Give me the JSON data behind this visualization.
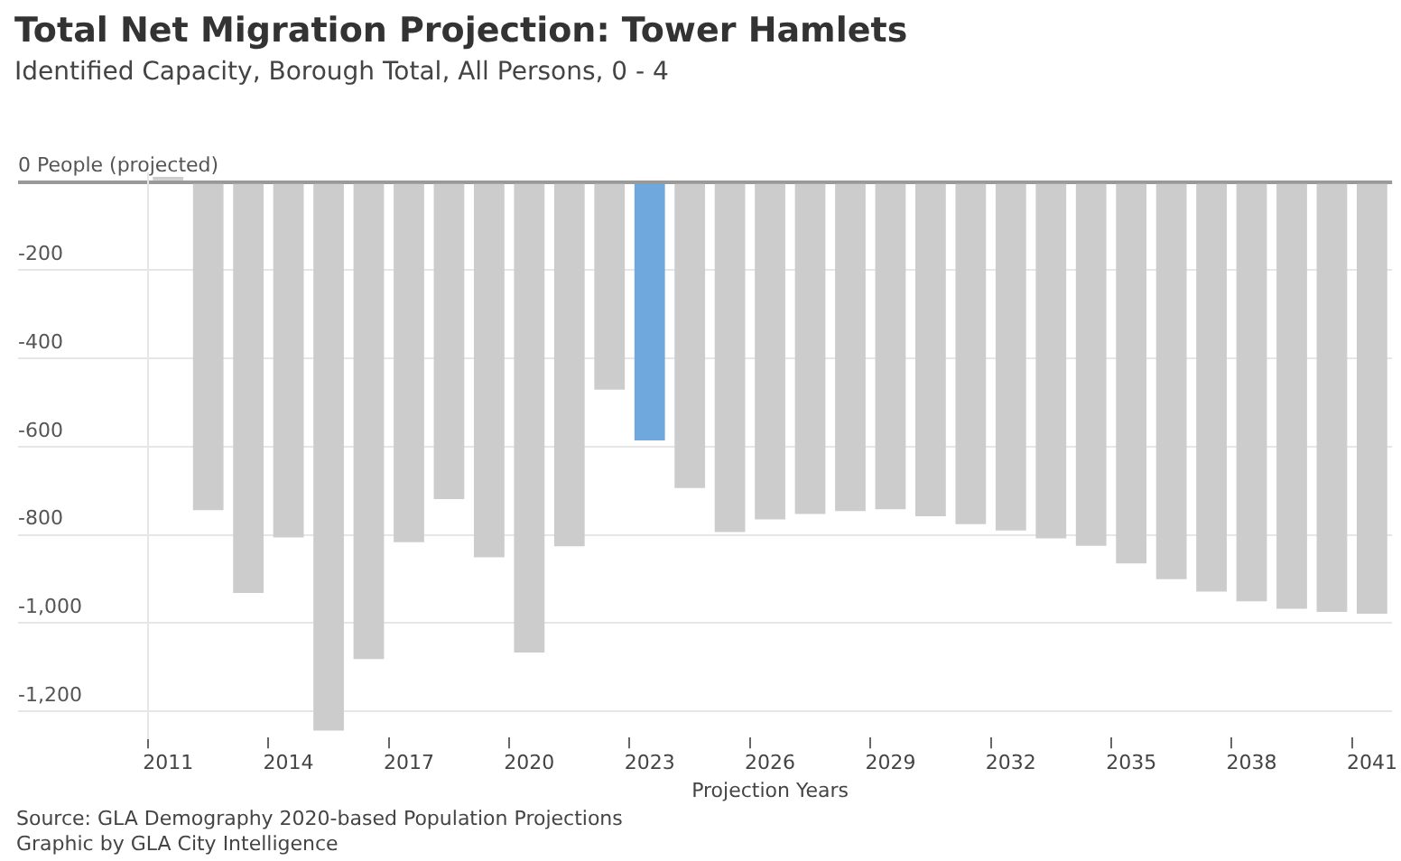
{
  "chart_data": {
    "type": "bar",
    "title": "Total Net Migration Projection: Tower Hamlets",
    "subtitle": "Identified Capacity, Borough Total, All Persons, 0 - 4",
    "xlabel": "Projection Years",
    "categories": [
      "2011",
      null,
      null,
      "2014",
      null,
      null,
      "2017",
      null,
      null,
      "2020",
      null,
      null,
      "2023",
      null,
      null,
      "2026",
      null,
      null,
      "2029",
      null,
      null,
      "2032",
      null,
      null,
      "2035",
      null,
      null,
      "2038",
      null,
      null,
      "2041"
    ],
    "values": [
      12,
      -744,
      -932,
      -806,
      -1244,
      -1082,
      -817,
      -719,
      -851,
      -1067,
      -826,
      -471,
      -586,
      -694,
      -794,
      -765,
      -753,
      -746,
      -742,
      -758,
      -776,
      -790,
      -808,
      -825,
      -865,
      -901,
      -929,
      -951,
      -968,
      -975,
      -979
    ],
    "colors": [
      "#cccccc",
      "#cccccc",
      "#cccccc",
      "#cccccc",
      "#cccccc",
      "#cccccc",
      "#cccccc",
      "#cccccc",
      "#cccccc",
      "#cccccc",
      "#cccccc",
      "#cccccc",
      "#6fa8dc",
      "#cccccc",
      "#cccccc",
      "#cccccc",
      "#cccccc",
      "#cccccc",
      "#cccccc",
      "#cccccc",
      "#cccccc",
      "#cccccc",
      "#cccccc",
      "#cccccc",
      "#cccccc",
      "#cccccc",
      "#cccccc",
      "#cccccc",
      "#cccccc",
      "#cccccc",
      "#cccccc"
    ],
    "ylim": [
      -1260,
      20
    ],
    "yticks": [
      {
        "value": 0,
        "label": "0 People (projected)"
      },
      -200,
      -400,
      -600,
      -800,
      {
        "value": -1000,
        "label": "-1,000"
      },
      {
        "value": -1200,
        "label": "-1,200"
      }
    ],
    "grid": "y",
    "legend": false,
    "annotations": [
      "Source: GLA Demography 2020-based Population Projections",
      "Graphic by GLA City Intelligence"
    ]
  }
}
